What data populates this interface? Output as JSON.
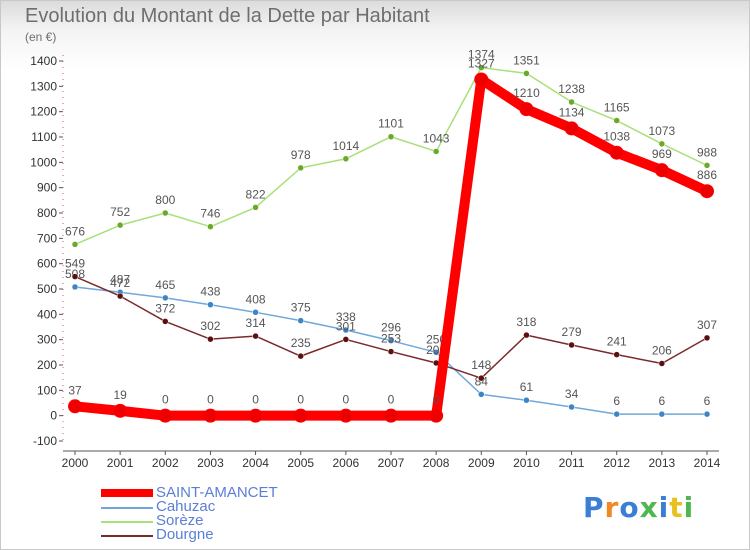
{
  "header": {
    "title": "Evolution du Montant de la Dette par Habitant",
    "unit": "(en €)"
  },
  "logo": {
    "text": "Proxiti"
  },
  "chart_data": {
    "type": "line",
    "title": "Evolution du Montant de la Dette par Habitant",
    "ylabel": "(en €)",
    "xlabel": "",
    "x": [
      "2000",
      "2001",
      "2002",
      "2003",
      "2004",
      "2005",
      "2006",
      "2007",
      "2008",
      "2009",
      "2010",
      "2011",
      "2012",
      "2013",
      "2014"
    ],
    "ylim": [
      -100,
      1400
    ],
    "yticks": [
      -100,
      0,
      100,
      200,
      300,
      400,
      500,
      600,
      700,
      800,
      900,
      1000,
      1100,
      1200,
      1300,
      1400
    ],
    "grid": false,
    "legend_position": "bottom-left",
    "series": [
      {
        "name": "SAINT-AMANCET",
        "color": "#ff0000",
        "line_color": "#ff0000",
        "marker_color": "#ee0000",
        "label_color": "#555555",
        "highlight": true,
        "values": [
          37,
          19,
          0,
          0,
          0,
          0,
          0,
          0,
          0,
          1327,
          1210,
          1134,
          1038,
          969,
          886
        ]
      },
      {
        "name": "Cahuzac",
        "color": "#6fa8dc",
        "line_color": "#6fa8dc",
        "marker_color": "#3d85c6",
        "label_color": "#555555",
        "highlight": false,
        "values": [
          508,
          487,
          465,
          438,
          408,
          375,
          338,
          296,
          250,
          84,
          61,
          34,
          6,
          6,
          6
        ]
      },
      {
        "name": "Sorèze",
        "color": "#a8e07a",
        "line_color": "#a8e07a",
        "marker_color": "#6aaa2a",
        "label_color": "#555555",
        "highlight": false,
        "values": [
          676,
          752,
          800,
          746,
          822,
          978,
          1014,
          1101,
          1043,
          1374,
          1351,
          1238,
          1165,
          1073,
          988
        ]
      },
      {
        "name": "Dourgne",
        "color": "#7a2a2a",
        "line_color": "#7a2a2a",
        "marker_color": "#5a1010",
        "label_color": "#555555",
        "highlight": false,
        "values": [
          549,
          472,
          372,
          302,
          314,
          235,
          301,
          253,
          208,
          148,
          318,
          279,
          241,
          206,
          307
        ]
      }
    ]
  }
}
